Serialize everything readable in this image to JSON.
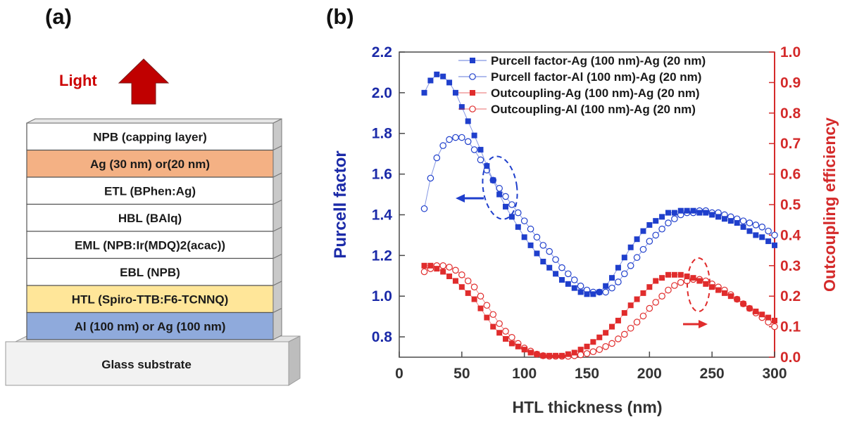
{
  "panel_a": {
    "label": "(a)",
    "light_label": "Light",
    "layers": [
      {
        "label": "NPB (capping layer)",
        "fill": "#ffffff"
      },
      {
        "label": "Ag (30 nm) or(20 nm)",
        "fill": "#f4b184"
      },
      {
        "label": "ETL (BPhen:Ag)",
        "fill": "#ffffff"
      },
      {
        "label": "HBL (BAlq)",
        "fill": "#ffffff"
      },
      {
        "label": "EML (NPB:Ir(MDQ)2(acac))",
        "fill": "#ffffff"
      },
      {
        "label": "EBL (NPB)",
        "fill": "#ffffff"
      },
      {
        "label": "HTL (Spiro-TTB:F6-TCNNQ)",
        "fill": "#ffe699"
      },
      {
        "label": "Al (100 nm) or Ag (100 nm)",
        "fill": "#8faadc"
      }
    ],
    "substrate_label": "Glass substrate",
    "colors": {
      "arrow": "#c00000",
      "light_text": "#cc0000"
    }
  },
  "chart_data": {
    "type": "scatter",
    "panel_label": "(b)",
    "title": "",
    "xlabel": "HTL thickness (nm)",
    "ylabel_left": "Purcell factor",
    "ylabel_right": "Outcoupling efficiency",
    "xlim": [
      0,
      300
    ],
    "ylim_left": [
      0.7,
      2.2
    ],
    "ylim_right": [
      0.0,
      1.0
    ],
    "x_ticks": [
      0,
      50,
      100,
      150,
      200,
      250,
      300
    ],
    "y_left_ticks": [
      0.8,
      1.0,
      1.2,
      1.4,
      1.6,
      1.8,
      2.0,
      2.2
    ],
    "y_right_ticks": [
      0.0,
      0.1,
      0.2,
      0.3,
      0.4,
      0.5,
      0.6,
      0.7,
      0.8,
      0.9,
      1.0
    ],
    "legend_position": "top-right",
    "colors": {
      "left_axis": "#1b2aa8",
      "right_axis": "#d42a2a",
      "series_blue": "#1f3fcc",
      "series_red": "#e02c2c"
    },
    "annotations": [
      "dashed ellipse with arrow pointing left (Purcell factor axis)",
      "dashed ellipse with arrow pointing right (Outcoupling axis)"
    ],
    "series": [
      {
        "name": "Purcell factor-Ag (100 nm)-Ag (20 nm)",
        "axis": "left",
        "marker": "filled-square",
        "color": "#1f3fcc",
        "x": [
          20,
          25,
          30,
          35,
          40,
          45,
          50,
          55,
          60,
          65,
          70,
          75,
          80,
          85,
          90,
          95,
          100,
          105,
          110,
          115,
          120,
          125,
          130,
          135,
          140,
          145,
          150,
          155,
          160,
          165,
          170,
          175,
          180,
          185,
          190,
          195,
          200,
          205,
          210,
          215,
          220,
          225,
          230,
          235,
          240,
          245,
          250,
          255,
          260,
          265,
          270,
          275,
          280,
          285,
          290,
          295,
          300
        ],
        "y": [
          2.0,
          2.06,
          2.09,
          2.08,
          2.05,
          2.0,
          1.93,
          1.86,
          1.79,
          1.72,
          1.64,
          1.57,
          1.5,
          1.44,
          1.39,
          1.34,
          1.29,
          1.25,
          1.21,
          1.17,
          1.14,
          1.11,
          1.08,
          1.06,
          1.04,
          1.02,
          1.01,
          1.01,
          1.02,
          1.05,
          1.09,
          1.14,
          1.19,
          1.24,
          1.28,
          1.32,
          1.35,
          1.37,
          1.39,
          1.41,
          1.41,
          1.42,
          1.42,
          1.42,
          1.41,
          1.41,
          1.4,
          1.39,
          1.38,
          1.37,
          1.36,
          1.34,
          1.32,
          1.3,
          1.29,
          1.27,
          1.25
        ]
      },
      {
        "name": "Purcell factor-Al (100 nm)-Ag (20 nm)",
        "axis": "left",
        "marker": "open-circle",
        "color": "#1f3fcc",
        "x": [
          20,
          25,
          30,
          35,
          40,
          45,
          50,
          55,
          60,
          65,
          70,
          75,
          80,
          85,
          90,
          95,
          100,
          105,
          110,
          115,
          120,
          125,
          130,
          135,
          140,
          145,
          150,
          155,
          160,
          165,
          170,
          175,
          180,
          185,
          190,
          195,
          200,
          205,
          210,
          215,
          220,
          225,
          230,
          235,
          240,
          245,
          250,
          255,
          260,
          265,
          270,
          275,
          280,
          285,
          290,
          295,
          300
        ],
        "y": [
          1.43,
          1.58,
          1.68,
          1.74,
          1.77,
          1.78,
          1.78,
          1.76,
          1.72,
          1.67,
          1.62,
          1.57,
          1.53,
          1.49,
          1.45,
          1.41,
          1.37,
          1.33,
          1.29,
          1.25,
          1.22,
          1.18,
          1.14,
          1.11,
          1.08,
          1.05,
          1.03,
          1.02,
          1.02,
          1.02,
          1.04,
          1.07,
          1.11,
          1.15,
          1.19,
          1.23,
          1.27,
          1.3,
          1.33,
          1.36,
          1.38,
          1.4,
          1.41,
          1.41,
          1.42,
          1.42,
          1.41,
          1.41,
          1.4,
          1.39,
          1.38,
          1.37,
          1.36,
          1.35,
          1.34,
          1.32,
          1.3
        ]
      },
      {
        "name": "Outcoupling-Ag (100 nm)-Ag (20 nm)",
        "axis": "right",
        "marker": "filled-square",
        "color": "#e02c2c",
        "x": [
          20,
          25,
          30,
          35,
          40,
          45,
          50,
          55,
          60,
          65,
          70,
          75,
          80,
          85,
          90,
          95,
          100,
          105,
          110,
          115,
          120,
          125,
          130,
          135,
          140,
          145,
          150,
          155,
          160,
          165,
          170,
          175,
          180,
          185,
          190,
          195,
          200,
          205,
          210,
          215,
          220,
          225,
          230,
          235,
          240,
          245,
          250,
          255,
          260,
          265,
          270,
          275,
          280,
          285,
          290,
          295,
          300
        ],
        "y": [
          0.3,
          0.3,
          0.29,
          0.28,
          0.265,
          0.25,
          0.23,
          0.21,
          0.19,
          0.16,
          0.13,
          0.1,
          0.08,
          0.06,
          0.045,
          0.035,
          0.025,
          0.015,
          0.01,
          0.005,
          0.005,
          0.005,
          0.005,
          0.01,
          0.015,
          0.025,
          0.035,
          0.05,
          0.065,
          0.08,
          0.1,
          0.12,
          0.145,
          0.17,
          0.19,
          0.21,
          0.23,
          0.25,
          0.26,
          0.27,
          0.27,
          0.27,
          0.265,
          0.26,
          0.25,
          0.24,
          0.23,
          0.22,
          0.21,
          0.2,
          0.19,
          0.175,
          0.16,
          0.15,
          0.14,
          0.13,
          0.12
        ]
      },
      {
        "name": "Outcoupling-Al (100 nm)-Ag (20 nm)",
        "axis": "right",
        "marker": "open-circle",
        "color": "#e02c2c",
        "x": [
          20,
          25,
          30,
          35,
          40,
          45,
          50,
          55,
          60,
          65,
          70,
          75,
          80,
          85,
          90,
          95,
          100,
          105,
          110,
          115,
          120,
          125,
          130,
          135,
          140,
          145,
          150,
          155,
          160,
          165,
          170,
          175,
          180,
          185,
          190,
          195,
          200,
          205,
          210,
          215,
          220,
          225,
          230,
          235,
          240,
          245,
          250,
          255,
          260,
          265,
          270,
          275,
          280,
          285,
          290,
          295,
          300
        ],
        "y": [
          0.28,
          0.29,
          0.3,
          0.3,
          0.295,
          0.285,
          0.27,
          0.25,
          0.23,
          0.2,
          0.17,
          0.14,
          0.11,
          0.085,
          0.065,
          0.045,
          0.03,
          0.02,
          0.01,
          0.005,
          0.003,
          0.003,
          0.003,
          0.003,
          0.005,
          0.008,
          0.012,
          0.018,
          0.025,
          0.035,
          0.045,
          0.06,
          0.075,
          0.095,
          0.115,
          0.135,
          0.16,
          0.18,
          0.2,
          0.22,
          0.235,
          0.245,
          0.25,
          0.255,
          0.255,
          0.25,
          0.24,
          0.23,
          0.22,
          0.205,
          0.19,
          0.175,
          0.16,
          0.145,
          0.13,
          0.115,
          0.1
        ]
      }
    ]
  }
}
